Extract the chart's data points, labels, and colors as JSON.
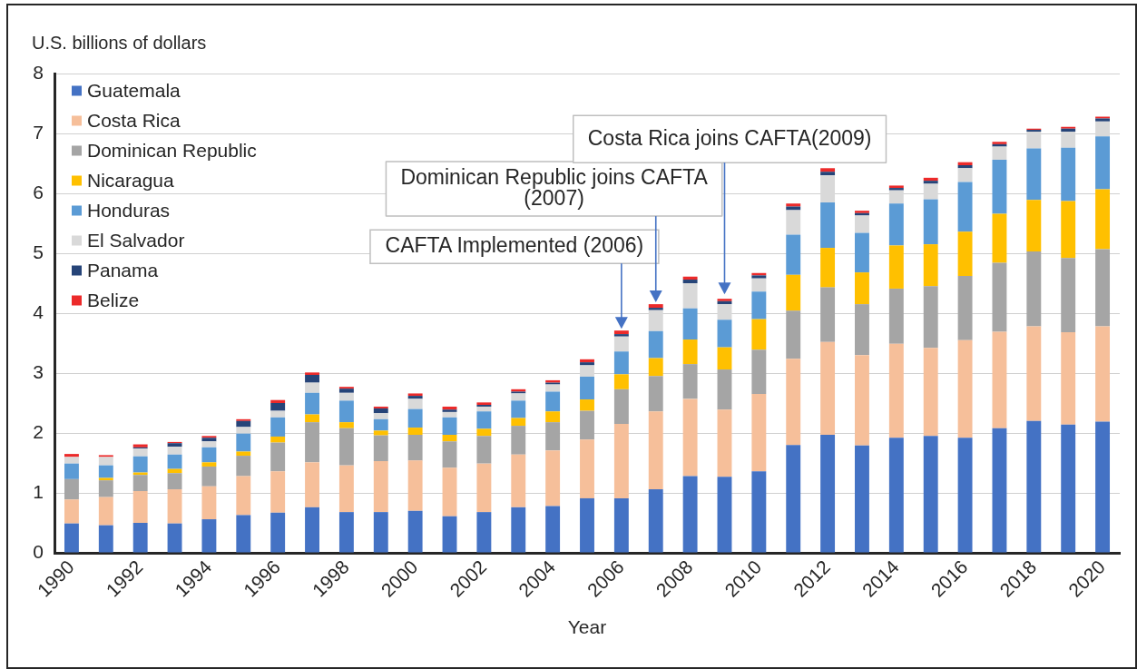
{
  "chart_data": {
    "type": "bar",
    "stacked": true,
    "ylabel": "U.S. billions of dollars",
    "xlabel": "Year",
    "x": [
      1990,
      1991,
      1992,
      1993,
      1994,
      1995,
      1996,
      1997,
      1998,
      1999,
      2000,
      2001,
      2002,
      2003,
      2004,
      2005,
      2006,
      2007,
      2008,
      2009,
      2010,
      2011,
      2012,
      2013,
      2014,
      2015,
      2016,
      2017,
      2018,
      2019,
      2020
    ],
    "xlim": [
      1989.5,
      2020.5
    ],
    "xticks": [
      1990,
      1992,
      1994,
      1996,
      1998,
      2000,
      2002,
      2004,
      2006,
      2008,
      2010,
      2012,
      2014,
      2016,
      2018,
      2020
    ],
    "ylim": [
      0,
      8
    ],
    "yticks": [
      0,
      1,
      2,
      3,
      4,
      5,
      6,
      7,
      8
    ],
    "grid": "y",
    "legend": "top left",
    "series": [
      {
        "name": "Guatemala",
        "color": "#4472c4",
        "values": [
          0.49,
          0.46,
          0.5,
          0.49,
          0.56,
          0.63,
          0.67,
          0.76,
          0.68,
          0.68,
          0.7,
          0.61,
          0.68,
          0.76,
          0.78,
          0.91,
          0.91,
          1.06,
          1.28,
          1.27,
          1.36,
          1.8,
          1.97,
          1.79,
          1.92,
          1.95,
          1.92,
          2.08,
          2.2,
          2.14,
          2.19
        ]
      },
      {
        "name": "Costa Rica",
        "color": "#f6bf9a",
        "values": [
          0.4,
          0.47,
          0.53,
          0.57,
          0.55,
          0.65,
          0.69,
          0.75,
          0.78,
          0.85,
          0.84,
          0.81,
          0.81,
          0.88,
          0.93,
          0.98,
          1.24,
          1.3,
          1.29,
          1.12,
          1.29,
          1.44,
          1.55,
          1.51,
          1.57,
          1.47,
          1.63,
          1.61,
          1.58,
          1.54,
          1.59
        ]
      },
      {
        "name": "Dominican Republic",
        "color": "#a5a5a5",
        "values": [
          0.34,
          0.28,
          0.27,
          0.27,
          0.33,
          0.34,
          0.48,
          0.67,
          0.62,
          0.43,
          0.43,
          0.44,
          0.46,
          0.48,
          0.47,
          0.48,
          0.58,
          0.59,
          0.58,
          0.67,
          0.74,
          0.8,
          0.91,
          0.85,
          0.92,
          1.03,
          1.07,
          1.15,
          1.25,
          1.24,
          1.29
        ]
      },
      {
        "name": "Nicaragua",
        "color": "#ffc000",
        "values": [
          0,
          0.04,
          0.04,
          0.07,
          0.07,
          0.07,
          0.1,
          0.13,
          0.1,
          0.08,
          0.12,
          0.11,
          0.12,
          0.13,
          0.18,
          0.19,
          0.25,
          0.3,
          0.41,
          0.37,
          0.51,
          0.6,
          0.66,
          0.53,
          0.72,
          0.7,
          0.74,
          0.82,
          0.86,
          0.95,
          1.0
        ]
      },
      {
        "name": "Honduras",
        "color": "#5b9bd5",
        "values": [
          0.26,
          0.21,
          0.27,
          0.24,
          0.25,
          0.3,
          0.32,
          0.36,
          0.36,
          0.19,
          0.31,
          0.29,
          0.29,
          0.29,
          0.33,
          0.38,
          0.38,
          0.45,
          0.52,
          0.46,
          0.46,
          0.67,
          0.76,
          0.66,
          0.7,
          0.75,
          0.83,
          0.9,
          0.86,
          0.89,
          0.88
        ]
      },
      {
        "name": "El Salvador",
        "color": "#d9d9d9",
        "values": [
          0.11,
          0.14,
          0.13,
          0.13,
          0.1,
          0.11,
          0.11,
          0.17,
          0.13,
          0.1,
          0.17,
          0.09,
          0.08,
          0.12,
          0.12,
          0.19,
          0.25,
          0.35,
          0.42,
          0.26,
          0.22,
          0.41,
          0.45,
          0.29,
          0.22,
          0.26,
          0.23,
          0.22,
          0.28,
          0.27,
          0.25
        ]
      },
      {
        "name": "Panama",
        "color": "#264478",
        "values": [
          0,
          0,
          0.02,
          0.06,
          0.06,
          0.1,
          0.13,
          0.13,
          0.07,
          0.08,
          0.05,
          0.04,
          0.03,
          0.03,
          0.03,
          0.05,
          0.04,
          0.04,
          0.06,
          0.05,
          0.05,
          0.06,
          0.06,
          0.04,
          0.04,
          0.05,
          0.05,
          0.04,
          0.03,
          0.05,
          0.05
        ]
      },
      {
        "name": "Belize",
        "color": "#ec2a2a",
        "values": [
          0.05,
          0.03,
          0.05,
          0.02,
          0.03,
          0.03,
          0.05,
          0.04,
          0.03,
          0.03,
          0.04,
          0.05,
          0.04,
          0.04,
          0.04,
          0.05,
          0.06,
          0.06,
          0.05,
          0.04,
          0.04,
          0.05,
          0.06,
          0.04,
          0.04,
          0.05,
          0.05,
          0.04,
          0.02,
          0.03,
          0.03
        ]
      }
    ],
    "annotations": [
      {
        "text": "CAFTA Implemented (2006)",
        "x": 2006,
        "y": 3.71
      },
      {
        "text": "Dominican Republic joins CAFTA (2007)",
        "x": 2007,
        "y": 4.15
      },
      {
        "text": "Costa Rica joins CAFTA(2009)",
        "x": 2009,
        "y": 4.24
      }
    ]
  }
}
